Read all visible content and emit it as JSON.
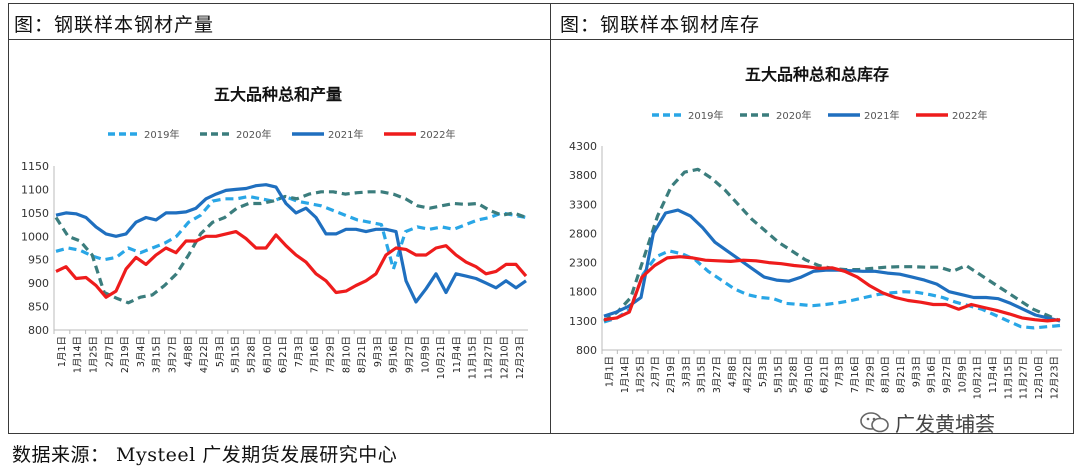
{
  "panels": [
    {
      "label": "图：钢联样本钢材产量"
    },
    {
      "label": "图：钢联样本钢材库存"
    }
  ],
  "source_text": "数据来源： Mysteel 广发期货发展研究中心",
  "watermark_text": "广发黄埔荟",
  "series_colors": {
    "2019": "#29a6e6",
    "2020": "#3b7d7d",
    "2021": "#1f6fbf",
    "2022": "#ee1c1c"
  },
  "chart_data": [
    {
      "type": "line",
      "title": "五大品种总和产量",
      "ylim": [
        800,
        1150
      ],
      "yticks": [
        800,
        850,
        900,
        950,
        1000,
        1050,
        1100,
        1150
      ],
      "x_tick_labels": [
        "1月1日",
        "1月14日",
        "1月25日",
        "2月7日",
        "2月19日",
        "3月4日",
        "3月15日",
        "3月27日",
        "4月8日",
        "4月22日",
        "5月3日",
        "5月15日",
        "5月28日",
        "6月10日",
        "6月21日",
        "7月3日",
        "7月16日",
        "7月29日",
        "8月10日",
        "8月21日",
        "9月3日",
        "9月16日",
        "9月27日",
        "10月9日",
        "10月21日",
        "11月4日",
        "11月15日",
        "11月27日",
        "12月10日",
        "12月23日"
      ],
      "series": [
        {
          "name": "2019年",
          "key": "2019",
          "style": "dash",
          "values": [
            968,
            975,
            970,
            958,
            950,
            955,
            975,
            965,
            975,
            985,
            1000,
            1030,
            1045,
            1075,
            1080,
            1080,
            1085,
            1080,
            1075,
            1085,
            1075,
            1070,
            1065,
            1055,
            1045,
            1035,
            1030,
            1025,
            930,
            1010,
            1020,
            1015,
            1020,
            1015,
            1025,
            1035,
            1040,
            1050,
            1045,
            1040
          ]
        },
        {
          "name": "2020年",
          "key": "2020",
          "style": "dash",
          "values": [
            1040,
            1000,
            990,
            960,
            880,
            868,
            858,
            870,
            875,
            895,
            920,
            960,
            1005,
            1030,
            1040,
            1060,
            1070,
            1070,
            1075,
            1085,
            1080,
            1090,
            1095,
            1095,
            1090,
            1093,
            1095,
            1095,
            1090,
            1080,
            1065,
            1060,
            1065,
            1070,
            1068,
            1070,
            1055,
            1045,
            1050,
            1040
          ]
        },
        {
          "name": "2021年",
          "key": "2021",
          "style": "solid",
          "values": [
            1045,
            1050,
            1048,
            1040,
            1020,
            1005,
            1000,
            1005,
            1030,
            1040,
            1035,
            1050,
            1050,
            1052,
            1060,
            1080,
            1090,
            1098,
            1100,
            1102,
            1108,
            1110,
            1105,
            1070,
            1050,
            1060,
            1040,
            1005,
            1005,
            1015,
            1015,
            1010,
            1015,
            1015,
            1010,
            905,
            860,
            888,
            920,
            880,
            920,
            915,
            910,
            900,
            890,
            905,
            890,
            905
          ]
        },
        {
          "name": "2022年",
          "key": "2022",
          "style": "solid",
          "values": [
            925,
            935,
            910,
            912,
            895,
            870,
            883,
            930,
            955,
            940,
            960,
            975,
            965,
            990,
            990,
            1000,
            1000,
            1005,
            1010,
            995,
            975,
            975,
            1003,
            980,
            960,
            945,
            920,
            905,
            880,
            883,
            895,
            905,
            920,
            960,
            975,
            972,
            960,
            960,
            975,
            980,
            960,
            945,
            935,
            920,
            925,
            940,
            940,
            915
          ]
        }
      ]
    },
    {
      "type": "line",
      "title": "五大品种总和总库存",
      "ylim": [
        800,
        4300
      ],
      "yticks": [
        800,
        1300,
        1800,
        2300,
        2800,
        3300,
        3800,
        4300
      ],
      "x_tick_labels": [
        "1月1日",
        "1月14日",
        "1月25日",
        "2月7日",
        "2月19日",
        "3月3日",
        "3月15日",
        "3月27日",
        "4月8日",
        "4月22日",
        "5月3日",
        "5月15日",
        "5月28日",
        "6月10日",
        "6月21日",
        "7月3日",
        "7月16日",
        "7月29日",
        "8月10日",
        "8月21日",
        "9月3日",
        "9月16日",
        "9月27日",
        "10月9日",
        "10月21日",
        "11月4日",
        "11月15日",
        "11月27日",
        "12月10日",
        "12月23日"
      ],
      "series": [
        {
          "name": "2019年",
          "key": "2019",
          "style": "dash",
          "values": [
            1280,
            1350,
            1500,
            2100,
            2400,
            2500,
            2450,
            2350,
            2150,
            2000,
            1850,
            1750,
            1700,
            1680,
            1600,
            1580,
            1560,
            1580,
            1610,
            1650,
            1700,
            1750,
            1780,
            1800,
            1790,
            1750,
            1700,
            1620,
            1560,
            1500,
            1400,
            1300,
            1200,
            1180,
            1200,
            1220
          ]
        },
        {
          "name": "2020年",
          "key": "2020",
          "style": "dash",
          "values": [
            1300,
            1450,
            1700,
            2400,
            3100,
            3600,
            3850,
            3900,
            3750,
            3550,
            3300,
            3050,
            2850,
            2650,
            2500,
            2350,
            2250,
            2200,
            2180,
            2180,
            2200,
            2220,
            2230,
            2230,
            2220,
            2220,
            2150,
            2250,
            2100,
            1950,
            1800,
            1650,
            1500,
            1400,
            1300
          ]
        },
        {
          "name": "2021年",
          "key": "2021",
          "style": "solid",
          "values": [
            1380,
            1450,
            1550,
            1700,
            2800,
            3150,
            3200,
            3100,
            2900,
            2650,
            2500,
            2350,
            2200,
            2050,
            2000,
            1980,
            2050,
            2150,
            2170,
            2170,
            2160,
            2150,
            2150,
            2120,
            2100,
            2050,
            2000,
            1930,
            1800,
            1750,
            1700,
            1700,
            1680,
            1600,
            1500,
            1400,
            1350,
            1300
          ]
        },
        {
          "name": "2022年",
          "key": "2022",
          "style": "solid",
          "values": [
            1320,
            1350,
            1450,
            2050,
            2250,
            2380,
            2400,
            2380,
            2340,
            2330,
            2320,
            2340,
            2330,
            2300,
            2280,
            2250,
            2230,
            2200,
            2210,
            2150,
            2050,
            1900,
            1780,
            1700,
            1650,
            1620,
            1580,
            1580,
            1500,
            1580,
            1530,
            1480,
            1420,
            1350,
            1320,
            1300,
            1320
          ]
        }
      ]
    }
  ]
}
